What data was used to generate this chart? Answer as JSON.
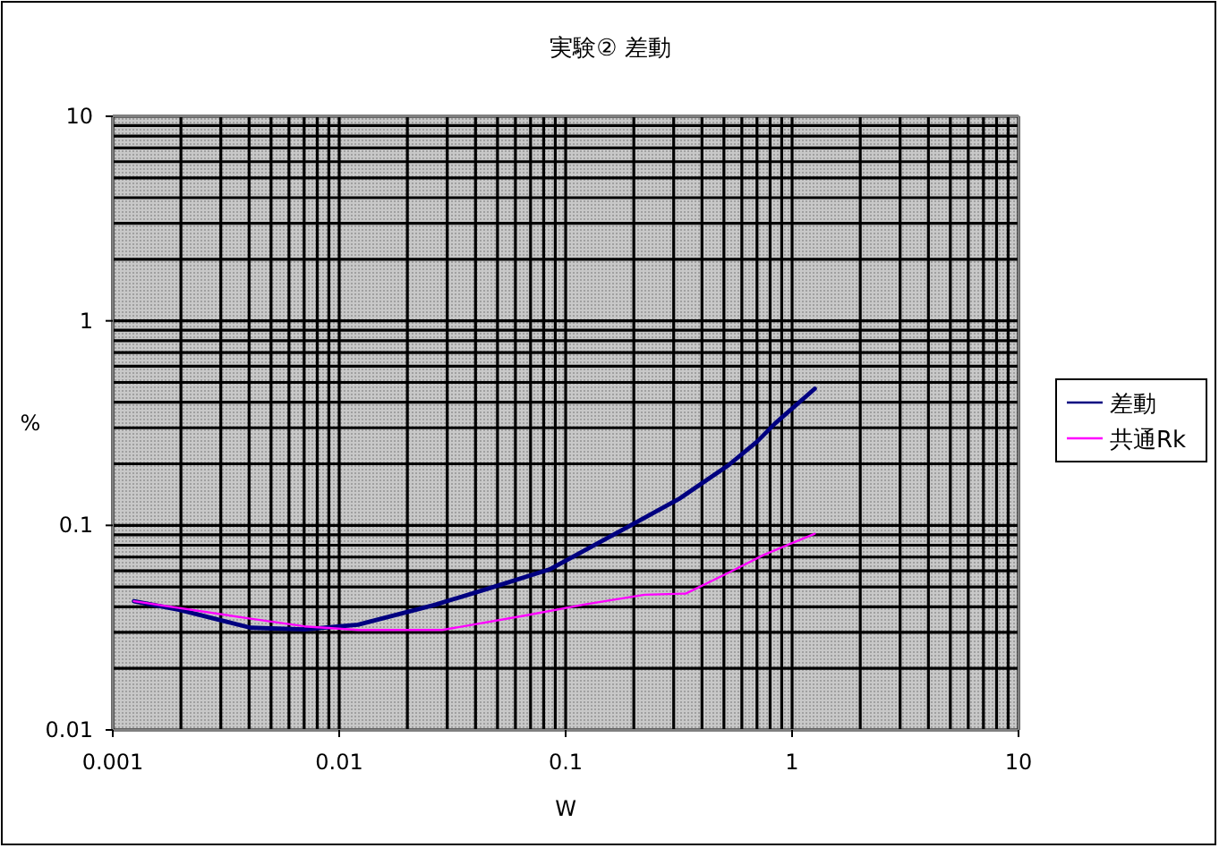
{
  "chart_data": {
    "type": "line",
    "title": "実験② 差動",
    "xlabel": "W",
    "ylabel": "%",
    "log": "xy",
    "xlim": [
      0.001,
      10
    ],
    "ylim": [
      0.01,
      10
    ],
    "xticks": [
      0.001,
      0.01,
      0.1,
      1,
      10
    ],
    "yticks": [
      0.01,
      0.1,
      1,
      10
    ],
    "grid": true,
    "legend": "right",
    "marker": "none",
    "line_style": "solid",
    "series": [
      {
        "name": "差動",
        "color": "#000080",
        "x": [
          0.00124,
          0.00196,
          0.00406,
          0.00702,
          0.0121,
          0.0265,
          0.0492,
          0.0849,
          0.196,
          0.321,
          0.524,
          0.701,
          0.841,
          1.26
        ],
        "values": [
          0.0426,
          0.0387,
          0.0316,
          0.031,
          0.0327,
          0.0409,
          0.0504,
          0.0609,
          0.1007,
          0.136,
          0.197,
          0.257,
          0.315,
          0.466
        ]
      },
      {
        "name": "共通Rk",
        "color": "#ff00ff",
        "x": [
          0.00124,
          0.00406,
          0.00702,
          0.0121,
          0.0285,
          0.0658,
          0.122,
          0.223,
          0.339,
          0.524,
          0.753,
          1.26
        ],
        "values": [
          0.0426,
          0.035,
          0.0321,
          0.0308,
          0.0308,
          0.0362,
          0.0411,
          0.0458,
          0.0464,
          0.0587,
          0.0719,
          0.091
        ]
      }
    ]
  }
}
